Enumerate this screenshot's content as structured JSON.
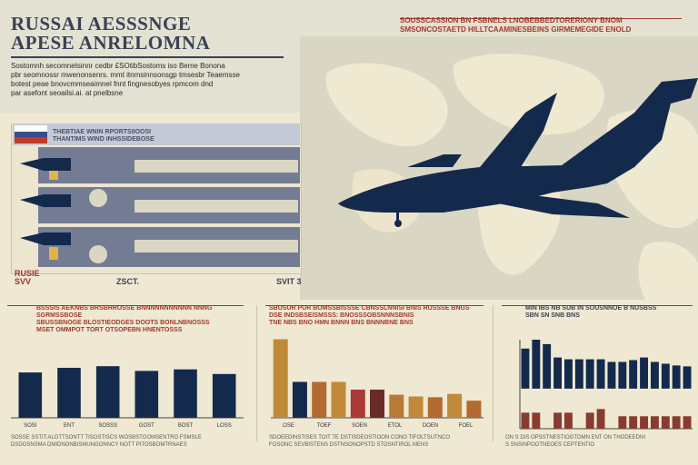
{
  "header": {
    "title": "RUSSAI AESSSNGE\nAPESE ANRELOMNA",
    "intro": "Sostomnh secomnetsinnr cedbr £SOtibSostoms iso Beme Bonona\npbr seomnossr mwenonsenrs. mmt itnmsinnsonsgp tmsesbr Teaemsse\nbotest peae bnovcmmseaimnel fnnt fingnesobyes rpmcom dnd\npar asefont seoailsi.ai. at pnelbsne",
    "right_text": "SOUSSCASSION BN FSBNELS LNOBEBBEDTORERIONY BNOM\nSMSONCOSTAETD HILLTCAAMINESBEINS GIRMEMEGIDE ENOLD"
  },
  "aircraft_panel": {
    "head_text": "THEBTIAE WNIN RPORTSIIOOSI\nTHANTIMS WIND INHSSIDEBOSE",
    "left_title": "RUSIE\nSVV",
    "mid_title": "ZSCT.",
    "right_title": "SVIT 3",
    "flag_colors": [
      "#ffffff",
      "#3a4c8c",
      "#c0392b"
    ]
  },
  "sections": [
    {
      "head": "BSSSIS AEKNBS BRSBRROSSE BNNNNNNNNNNN NNNG SGRMSSBOSE\nSBUSSBNOGE BLOSTIEODGES DOOTS BONLNBNOSSS\nMSET OMMPOT TORT OTSOPEBN HNENTOSSS",
      "footnote": "SOSSE SSTIT:ALOTTSONTT TISOSTISCS WOSBSTGOMSENTRO FSMSLE\nDSDOSNSMA DMIDNONBISMUNGONNCY NOTT PITOSBOMTRNAES"
    },
    {
      "head": "SBUSUR PUR BOMSSBISSSE CBNSSLNNISI BNIS RUSSSE BNGS\nDSE INDSBSEISMSSS: BNOSSSOBSNNNSBNIS\nTNE NBS BNO HMN BNNN BNS BNNNBNE BNS",
      "footnote": "SDOEEDINSTISES TOIT TE DSTISDEOSTIOON CONO TIFOLTSUTNCO\nFOSONC SEVBISTENS DSTNSONOPSTD STOSNTIROL MENS"
    },
    {
      "head": "MIN IBS NB SUB IN SOUSNNOE B NUSBSS\nSBN SN SNB BNS",
      "footnote": "ON S DIS OPSSTNESTIOGTOMN ENT ON THODEEDNI\nS SNSINPOOTNEOES CEPTENTIO"
    }
  ],
  "chart_data": [
    {
      "type": "bar",
      "title": "",
      "categories": [
        "",
        "",
        "",
        "",
        "",
        ""
      ],
      "series": [
        {
          "values": [
            58,
            64,
            66,
            60,
            62,
            56
          ]
        }
      ],
      "ylim": [
        0,
        100
      ],
      "colors": [
        "#142a4d"
      ],
      "tick_labels": [
        "SOSI",
        "ENT",
        "SOSSS",
        "GOST",
        "BOST",
        "LOSS"
      ]
    },
    {
      "type": "bar",
      "title": "",
      "categories": [
        "",
        "",
        "",
        "",
        "",
        "",
        "",
        "",
        "",
        "",
        ""
      ],
      "series": [
        {
          "values": [
            92,
            42,
            42,
            42,
            33,
            33,
            27,
            25,
            24,
            28,
            20
          ]
        }
      ],
      "ylim": [
        0,
        100
      ],
      "colors": [
        "#c08a3a",
        "#142a4d",
        "#b26a2e",
        "#c08a3a",
        "#a93a36",
        "#6b2a2a",
        "#b97a35",
        "#c08a3a",
        "#b26a2e",
        "#c08a3a",
        "#b26a2e"
      ],
      "tick_labels": [
        "OSE",
        "TOEF",
        "SOEN",
        "ETOL",
        "DOEN",
        "FOEL"
      ]
    },
    {
      "type": "bar",
      "title": "",
      "categories": [
        "",
        "",
        "",
        "",
        "",
        "",
        "",
        "",
        "",
        "",
        "",
        "",
        "",
        "",
        "",
        ""
      ],
      "series": [
        {
          "values": [
            45,
            55,
            50,
            35,
            33,
            33,
            33,
            33,
            30,
            30,
            32,
            35,
            30,
            28,
            26,
            25
          ]
        },
        {
          "values": [
            18,
            18,
            0,
            18,
            18,
            0,
            18,
            22,
            0,
            14,
            14,
            14,
            14,
            14,
            14,
            14
          ]
        }
      ],
      "ylim": [
        0,
        100
      ],
      "colors": [
        "#142a4d",
        "#8a3a2e"
      ],
      "tick_labels": [
        "",
        "",
        "",
        "",
        "",
        ""
      ]
    }
  ]
}
